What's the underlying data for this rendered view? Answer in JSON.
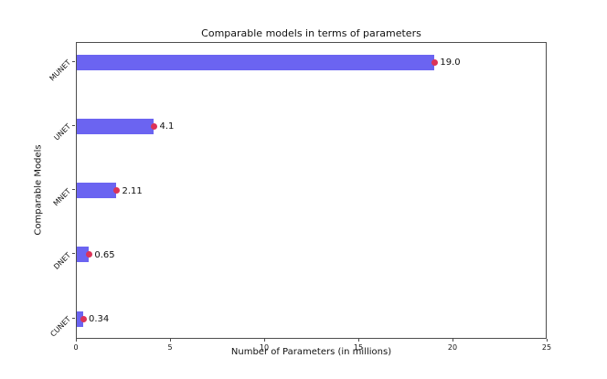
{
  "chart_data": {
    "type": "bar",
    "orientation": "horizontal",
    "title": "Comparable models in terms of parameters",
    "xlabel": "Number of Parameters (in millions)",
    "ylabel": "Comparable Models",
    "categories": [
      "MUNET",
      "UNET",
      "MNET",
      "DNET",
      "CUNET"
    ],
    "values": [
      19.0,
      4.1,
      2.11,
      0.65,
      0.34
    ],
    "value_labels": [
      "19.0",
      "4.1",
      "2.11",
      "0.65",
      "0.34"
    ],
    "xlim": [
      0,
      25
    ],
    "xticks": [
      "0",
      "5",
      "10",
      "15",
      "20",
      "25"
    ],
    "grid": false,
    "legend": "none",
    "bar_color": "#6b64f1",
    "marker_color": "#dc3358",
    "spine_color": "#4d4d4d"
  }
}
